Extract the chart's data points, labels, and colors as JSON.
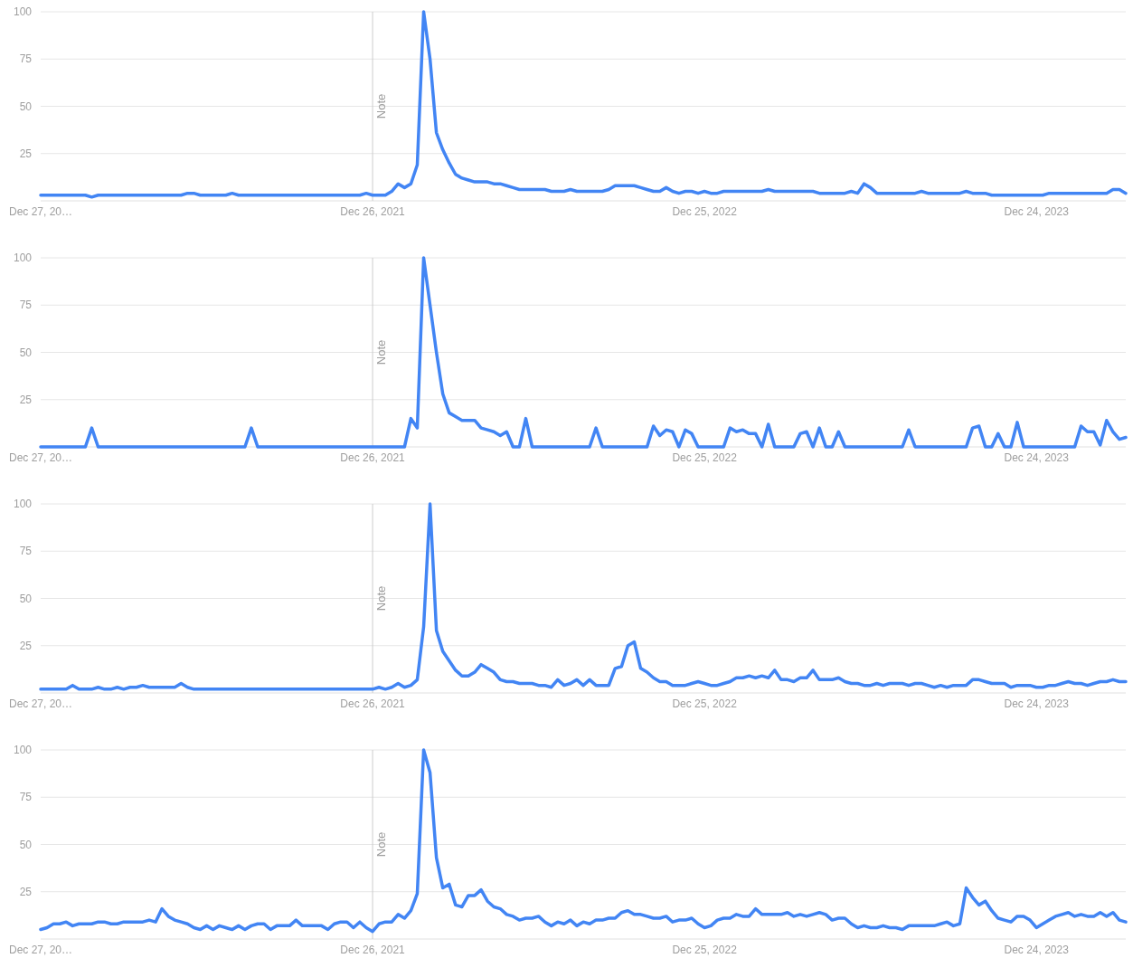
{
  "chart_data": [
    {
      "type": "line",
      "xlim": [
        "2020-12-27",
        "2024-03-31"
      ],
      "ylim": [
        0,
        100
      ],
      "xticks": [
        {
          "value": "2020-12-27",
          "label": "Dec 27, 20…"
        },
        {
          "value": "2021-12-26",
          "label": "Dec 26, 2021"
        },
        {
          "value": "2022-12-25",
          "label": "Dec 25, 2022"
        },
        {
          "value": "2023-12-24",
          "label": "Dec 24, 2023"
        }
      ],
      "yticks": [
        25,
        50,
        75,
        100
      ],
      "grid": "y",
      "marker": "none",
      "ref_lines": [
        {
          "axis": "x",
          "value": "2021-12-26",
          "label": "Note",
          "color": "#cccccc"
        }
      ],
      "x": [
        "2020-12-27",
        "2021-01-03",
        "2021-01-10",
        "2021-01-17",
        "2021-01-24",
        "2021-01-31",
        "2021-02-07",
        "2021-02-14",
        "2021-02-21",
        "2021-02-28",
        "2021-03-07",
        "2021-03-14",
        "2021-03-21",
        "2021-03-28",
        "2021-04-04",
        "2021-04-11",
        "2021-04-18",
        "2021-04-25",
        "2021-05-02",
        "2021-05-09",
        "2021-05-16",
        "2021-05-23",
        "2021-05-30",
        "2021-06-06",
        "2021-06-13",
        "2021-06-20",
        "2021-06-27",
        "2021-07-04",
        "2021-07-11",
        "2021-07-18",
        "2021-07-25",
        "2021-08-01",
        "2021-08-08",
        "2021-08-15",
        "2021-08-22",
        "2021-08-29",
        "2021-09-05",
        "2021-09-12",
        "2021-09-19",
        "2021-09-26",
        "2021-10-03",
        "2021-10-10",
        "2021-10-17",
        "2021-10-24",
        "2021-10-31",
        "2021-11-07",
        "2021-11-14",
        "2021-11-21",
        "2021-11-28",
        "2021-12-05",
        "2021-12-12",
        "2021-12-19",
        "2021-12-26",
        "2022-01-02",
        "2022-01-09",
        "2022-01-16",
        "2022-01-23",
        "2022-01-30",
        "2022-02-06",
        "2022-02-13",
        "2022-02-20",
        "2022-02-27",
        "2022-03-06",
        "2022-03-13",
        "2022-03-20",
        "2022-03-27",
        "2022-04-03",
        "2022-04-10",
        "2022-04-17",
        "2022-04-24",
        "2022-05-01",
        "2022-05-08",
        "2022-05-15",
        "2022-05-22",
        "2022-05-29",
        "2022-06-05",
        "2022-06-12",
        "2022-06-19",
        "2022-06-26",
        "2022-07-03",
        "2022-07-10",
        "2022-07-17",
        "2022-07-24",
        "2022-07-31",
        "2022-08-07",
        "2022-08-14",
        "2022-08-21",
        "2022-08-28",
        "2022-09-04",
        "2022-09-11",
        "2022-09-18",
        "2022-09-25",
        "2022-10-02",
        "2022-10-09",
        "2022-10-16",
        "2022-10-23",
        "2022-10-30",
        "2022-11-06",
        "2022-11-13",
        "2022-11-20",
        "2022-11-27",
        "2022-12-04",
        "2022-12-11",
        "2022-12-18",
        "2022-12-25",
        "2023-01-01",
        "2023-01-08",
        "2023-01-15",
        "2023-01-22",
        "2023-01-29",
        "2023-02-05",
        "2023-02-12",
        "2023-02-19",
        "2023-02-26",
        "2023-03-05",
        "2023-03-12",
        "2023-03-19",
        "2023-03-26",
        "2023-04-02",
        "2023-04-09",
        "2023-04-16",
        "2023-04-23",
        "2023-04-30",
        "2023-05-07",
        "2023-05-14",
        "2023-05-21",
        "2023-05-28",
        "2023-06-04",
        "2023-06-11",
        "2023-06-18",
        "2023-06-25",
        "2023-07-02",
        "2023-07-09",
        "2023-07-16",
        "2023-07-23",
        "2023-07-30",
        "2023-08-06",
        "2023-08-13",
        "2023-08-20",
        "2023-08-27",
        "2023-09-03",
        "2023-09-10",
        "2023-09-17",
        "2023-09-24",
        "2023-10-01",
        "2023-10-08",
        "2023-10-15",
        "2023-10-22",
        "2023-10-29",
        "2023-11-05",
        "2023-11-12",
        "2023-11-19",
        "2023-11-26",
        "2023-12-03",
        "2023-12-10",
        "2023-12-17",
        "2023-12-24",
        "2023-12-31",
        "2024-01-07",
        "2024-01-14",
        "2024-01-21",
        "2024-01-28",
        "2024-02-04",
        "2024-02-11",
        "2024-02-18",
        "2024-02-25",
        "2024-03-03",
        "2024-03-10",
        "2024-03-17",
        "2024-03-24",
        "2024-03-31"
      ],
      "series": [
        {
          "color": "#4285f4",
          "values": [
            3,
            3,
            3,
            3,
            3,
            3,
            3,
            3,
            2,
            3,
            3,
            3,
            3,
            3,
            3,
            3,
            3,
            3,
            3,
            3,
            3,
            3,
            3,
            4,
            4,
            3,
            3,
            3,
            3,
            3,
            4,
            3,
            3,
            3,
            3,
            3,
            3,
            3,
            3,
            3,
            3,
            3,
            3,
            3,
            3,
            3,
            3,
            3,
            3,
            3,
            3,
            4,
            3,
            3,
            3,
            5,
            9,
            7,
            9,
            19,
            100,
            75,
            36,
            27,
            20,
            14,
            12,
            11,
            10,
            10,
            10,
            9,
            9,
            8,
            7,
            6,
            6,
            6,
            6,
            6,
            5,
            5,
            5,
            6,
            5,
            5,
            5,
            5,
            5,
            6,
            8,
            8,
            8,
            8,
            7,
            6,
            5,
            5,
            7,
            5,
            4,
            5,
            5,
            4,
            5,
            4,
            4,
            5,
            5,
            5,
            5,
            5,
            5,
            5,
            6,
            5,
            5,
            5,
            5,
            5,
            5,
            5,
            4,
            4,
            4,
            4,
            4,
            5,
            4,
            9,
            7,
            4,
            4,
            4,
            4,
            4,
            4,
            4,
            5,
            4,
            4,
            4,
            4,
            4,
            4,
            5,
            4,
            4,
            4,
            3,
            3,
            3,
            3,
            3,
            3,
            3,
            3,
            3,
            4,
            4,
            4,
            4,
            4,
            4,
            4,
            4,
            4,
            4,
            6,
            6,
            4
          ]
        }
      ]
    },
    {
      "type": "line",
      "xlim": [
        "2020-12-27",
        "2024-03-31"
      ],
      "ylim": [
        0,
        100
      ],
      "xticks": [
        {
          "value": "2020-12-27",
          "label": "Dec 27, 20…"
        },
        {
          "value": "2021-12-26",
          "label": "Dec 26, 2021"
        },
        {
          "value": "2022-12-25",
          "label": "Dec 25, 2022"
        },
        {
          "value": "2023-12-24",
          "label": "Dec 24, 2023"
        }
      ],
      "yticks": [
        25,
        50,
        75,
        100
      ],
      "grid": "y",
      "marker": "none",
      "ref_lines": [
        {
          "axis": "x",
          "value": "2021-12-26",
          "label": "Note",
          "color": "#cccccc"
        }
      ],
      "x": [
        "2020-12-27",
        "2021-01-03",
        "2021-01-10",
        "2021-01-17",
        "2021-01-24",
        "2021-01-31",
        "2021-02-07",
        "2021-02-14",
        "2021-02-21",
        "2021-02-28",
        "2021-03-07",
        "2021-03-14",
        "2021-03-21",
        "2021-03-28",
        "2021-04-04",
        "2021-04-11",
        "2021-04-18",
        "2021-04-25",
        "2021-05-02",
        "2021-05-09",
        "2021-05-16",
        "2021-05-23",
        "2021-05-30",
        "2021-06-06",
        "2021-06-13",
        "2021-06-20",
        "2021-06-27",
        "2021-07-04",
        "2021-07-11",
        "2021-07-18",
        "2021-07-25",
        "2021-08-01",
        "2021-08-08",
        "2021-08-15",
        "2021-08-22",
        "2021-08-29",
        "2021-09-05",
        "2021-09-12",
        "2021-09-19",
        "2021-09-26",
        "2021-10-03",
        "2021-10-10",
        "2021-10-17",
        "2021-10-24",
        "2021-10-31",
        "2021-11-07",
        "2021-11-14",
        "2021-11-21",
        "2021-11-28",
        "2021-12-05",
        "2021-12-12",
        "2021-12-19",
        "2021-12-26",
        "2022-01-02",
        "2022-01-09",
        "2022-01-16",
        "2022-01-23",
        "2022-01-30",
        "2022-02-06",
        "2022-02-13",
        "2022-02-20",
        "2022-02-27",
        "2022-03-06",
        "2022-03-13",
        "2022-03-20",
        "2022-03-27",
        "2022-04-03",
        "2022-04-10",
        "2022-04-17",
        "2022-04-24",
        "2022-05-01",
        "2022-05-08",
        "2022-05-15",
        "2022-05-22",
        "2022-05-29",
        "2022-06-05",
        "2022-06-12",
        "2022-06-19",
        "2022-06-26",
        "2022-07-03",
        "2022-07-10",
        "2022-07-17",
        "2022-07-24",
        "2022-07-31",
        "2022-08-07",
        "2022-08-14",
        "2022-08-21",
        "2022-08-28",
        "2022-09-04",
        "2022-09-11",
        "2022-09-18",
        "2022-09-25",
        "2022-10-02",
        "2022-10-09",
        "2022-10-16",
        "2022-10-23",
        "2022-10-30",
        "2022-11-06",
        "2022-11-13",
        "2022-11-20",
        "2022-11-27",
        "2022-12-04",
        "2022-12-11",
        "2022-12-18",
        "2022-12-25",
        "2023-01-01",
        "2023-01-08",
        "2023-01-15",
        "2023-01-22",
        "2023-01-29",
        "2023-02-05",
        "2023-02-12",
        "2023-02-19",
        "2023-02-26",
        "2023-03-05",
        "2023-03-12",
        "2023-03-19",
        "2023-03-26",
        "2023-04-02",
        "2023-04-09",
        "2023-04-16",
        "2023-04-23",
        "2023-04-30",
        "2023-05-07",
        "2023-05-14",
        "2023-05-21",
        "2023-05-28",
        "2023-06-04",
        "2023-06-11",
        "2023-06-18",
        "2023-06-25",
        "2023-07-02",
        "2023-07-09",
        "2023-07-16",
        "2023-07-23",
        "2023-07-30",
        "2023-08-06",
        "2023-08-13",
        "2023-08-20",
        "2023-08-27",
        "2023-09-03",
        "2023-09-10",
        "2023-09-17",
        "2023-09-24",
        "2023-10-01",
        "2023-10-08",
        "2023-10-15",
        "2023-10-22",
        "2023-10-29",
        "2023-11-05",
        "2023-11-12",
        "2023-11-19",
        "2023-11-26",
        "2023-12-03",
        "2023-12-10",
        "2023-12-17",
        "2023-12-24",
        "2023-12-31",
        "2024-01-07",
        "2024-01-14",
        "2024-01-21",
        "2024-01-28",
        "2024-02-04",
        "2024-02-11",
        "2024-02-18",
        "2024-02-25",
        "2024-03-03",
        "2024-03-10",
        "2024-03-17",
        "2024-03-24",
        "2024-03-31"
      ],
      "series": [
        {
          "color": "#4285f4",
          "values": [
            0,
            0,
            0,
            0,
            0,
            0,
            0,
            0,
            10,
            0,
            0,
            0,
            0,
            0,
            0,
            0,
            0,
            0,
            0,
            0,
            0,
            0,
            0,
            0,
            0,
            0,
            0,
            0,
            0,
            0,
            0,
            0,
            0,
            10,
            0,
            0,
            0,
            0,
            0,
            0,
            0,
            0,
            0,
            0,
            0,
            0,
            0,
            0,
            0,
            0,
            0,
            0,
            0,
            0,
            0,
            0,
            0,
            0,
            15,
            10,
            100,
            75,
            50,
            28,
            18,
            16,
            14,
            14,
            14,
            10,
            9,
            8,
            6,
            8,
            0,
            0,
            15,
            0,
            0,
            0,
            0,
            0,
            0,
            0,
            0,
            0,
            0,
            10,
            0,
            0,
            0,
            0,
            0,
            0,
            0,
            0,
            11,
            6,
            9,
            8,
            0,
            9,
            7,
            0,
            0,
            0,
            0,
            0,
            10,
            8,
            9,
            7,
            7,
            0,
            12,
            0,
            0,
            0,
            0,
            7,
            8,
            0,
            10,
            0,
            0,
            8,
            0,
            0,
            0,
            0,
            0,
            0,
            0,
            0,
            0,
            0,
            9,
            0,
            0,
            0,
            0,
            0,
            0,
            0,
            0,
            0,
            10,
            11,
            0,
            0,
            7,
            0,
            0,
            13,
            0,
            0,
            0,
            0,
            0,
            0,
            0,
            0,
            0,
            11,
            8,
            8,
            1,
            14,
            8,
            4,
            5
          ]
        }
      ]
    },
    {
      "type": "line",
      "xlim": [
        "2020-12-27",
        "2024-03-31"
      ],
      "ylim": [
        0,
        100
      ],
      "xticks": [
        {
          "value": "2020-12-27",
          "label": "Dec 27, 20…"
        },
        {
          "value": "2021-12-26",
          "label": "Dec 26, 2021"
        },
        {
          "value": "2022-12-25",
          "label": "Dec 25, 2022"
        },
        {
          "value": "2023-12-24",
          "label": "Dec 24, 2023"
        }
      ],
      "yticks": [
        25,
        50,
        75,
        100
      ],
      "grid": "y",
      "marker": "none",
      "ref_lines": [
        {
          "axis": "x",
          "value": "2021-12-26",
          "label": "Note",
          "color": "#cccccc"
        }
      ],
      "x": [
        "2020-12-27",
        "2021-01-03",
        "2021-01-10",
        "2021-01-17",
        "2021-01-24",
        "2021-01-31",
        "2021-02-07",
        "2021-02-14",
        "2021-02-21",
        "2021-02-28",
        "2021-03-07",
        "2021-03-14",
        "2021-03-21",
        "2021-03-28",
        "2021-04-04",
        "2021-04-11",
        "2021-04-18",
        "2021-04-25",
        "2021-05-02",
        "2021-05-09",
        "2021-05-16",
        "2021-05-23",
        "2021-05-30",
        "2021-06-06",
        "2021-06-13",
        "2021-06-20",
        "2021-06-27",
        "2021-07-04",
        "2021-07-11",
        "2021-07-18",
        "2021-07-25",
        "2021-08-01",
        "2021-08-08",
        "2021-08-15",
        "2021-08-22",
        "2021-08-29",
        "2021-09-05",
        "2021-09-12",
        "2021-09-19",
        "2021-09-26",
        "2021-10-03",
        "2021-10-10",
        "2021-10-17",
        "2021-10-24",
        "2021-10-31",
        "2021-11-07",
        "2021-11-14",
        "2021-11-21",
        "2021-11-28",
        "2021-12-05",
        "2021-12-12",
        "2021-12-19",
        "2021-12-26",
        "2022-01-02",
        "2022-01-09",
        "2022-01-16",
        "2022-01-23",
        "2022-01-30",
        "2022-02-06",
        "2022-02-13",
        "2022-02-20",
        "2022-02-27",
        "2022-03-06",
        "2022-03-13",
        "2022-03-20",
        "2022-03-27",
        "2022-04-03",
        "2022-04-10",
        "2022-04-17",
        "2022-04-24",
        "2022-05-01",
        "2022-05-08",
        "2022-05-15",
        "2022-05-22",
        "2022-05-29",
        "2022-06-05",
        "2022-06-12",
        "2022-06-19",
        "2022-06-26",
        "2022-07-03",
        "2022-07-10",
        "2022-07-17",
        "2022-07-24",
        "2022-07-31",
        "2022-08-07",
        "2022-08-14",
        "2022-08-21",
        "2022-08-28",
        "2022-09-04",
        "2022-09-11",
        "2022-09-18",
        "2022-09-25",
        "2022-10-02",
        "2022-10-09",
        "2022-10-16",
        "2022-10-23",
        "2022-10-30",
        "2022-11-06",
        "2022-11-13",
        "2022-11-20",
        "2022-11-27",
        "2022-12-04",
        "2022-12-11",
        "2022-12-18",
        "2022-12-25",
        "2023-01-01",
        "2023-01-08",
        "2023-01-15",
        "2023-01-22",
        "2023-01-29",
        "2023-02-05",
        "2023-02-12",
        "2023-02-19",
        "2023-02-26",
        "2023-03-05",
        "2023-03-12",
        "2023-03-19",
        "2023-03-26",
        "2023-04-02",
        "2023-04-09",
        "2023-04-16",
        "2023-04-23",
        "2023-04-30",
        "2023-05-07",
        "2023-05-14",
        "2023-05-21",
        "2023-05-28",
        "2023-06-04",
        "2023-06-11",
        "2023-06-18",
        "2023-06-25",
        "2023-07-02",
        "2023-07-09",
        "2023-07-16",
        "2023-07-23",
        "2023-07-30",
        "2023-08-06",
        "2023-08-13",
        "2023-08-20",
        "2023-08-27",
        "2023-09-03",
        "2023-09-10",
        "2023-09-17",
        "2023-09-24",
        "2023-10-01",
        "2023-10-08",
        "2023-10-15",
        "2023-10-22",
        "2023-10-29",
        "2023-11-05",
        "2023-11-12",
        "2023-11-19",
        "2023-11-26",
        "2023-12-03",
        "2023-12-10",
        "2023-12-17",
        "2023-12-24",
        "2023-12-31",
        "2024-01-07",
        "2024-01-14",
        "2024-01-21",
        "2024-01-28",
        "2024-02-04",
        "2024-02-11",
        "2024-02-18",
        "2024-02-25",
        "2024-03-03",
        "2024-03-10",
        "2024-03-17",
        "2024-03-24",
        "2024-03-31"
      ],
      "series": [
        {
          "color": "#4285f4",
          "values": [
            2,
            2,
            2,
            2,
            2,
            4,
            2,
            2,
            2,
            3,
            2,
            2,
            3,
            2,
            3,
            3,
            4,
            3,
            3,
            3,
            3,
            3,
            5,
            3,
            2,
            2,
            2,
            2,
            2,
            2,
            2,
            2,
            2,
            2,
            2,
            2,
            2,
            2,
            2,
            2,
            2,
            2,
            2,
            2,
            2,
            2,
            2,
            2,
            2,
            2,
            2,
            2,
            2,
            3,
            2,
            3,
            5,
            3,
            4,
            7,
            35,
            100,
            33,
            22,
            17,
            12,
            9,
            9,
            11,
            15,
            13,
            11,
            7,
            6,
            6,
            5,
            5,
            5,
            4,
            4,
            3,
            7,
            4,
            5,
            7,
            4,
            7,
            4,
            4,
            4,
            13,
            14,
            25,
            27,
            13,
            11,
            8,
            6,
            6,
            4,
            4,
            4,
            5,
            6,
            5,
            4,
            4,
            5,
            6,
            8,
            8,
            9,
            8,
            9,
            8,
            12,
            7,
            7,
            6,
            8,
            8,
            12,
            7,
            7,
            7,
            8,
            6,
            5,
            5,
            4,
            4,
            5,
            4,
            5,
            5,
            5,
            4,
            5,
            5,
            4,
            3,
            4,
            3,
            4,
            4,
            4,
            7,
            7,
            6,
            5,
            5,
            5,
            3,
            4,
            4,
            4,
            3,
            3,
            4,
            4,
            5,
            6,
            5,
            5,
            4,
            5,
            6,
            6,
            7,
            6,
            6
          ]
        }
      ]
    },
    {
      "type": "line",
      "xlim": [
        "2020-12-27",
        "2024-03-31"
      ],
      "ylim": [
        0,
        100
      ],
      "xticks": [
        {
          "value": "2020-12-27",
          "label": "Dec 27, 20…"
        },
        {
          "value": "2021-12-26",
          "label": "Dec 26, 2021"
        },
        {
          "value": "2022-12-25",
          "label": "Dec 25, 2022"
        },
        {
          "value": "2023-12-24",
          "label": "Dec 24, 2023"
        }
      ],
      "yticks": [
        25,
        50,
        75,
        100
      ],
      "grid": "y",
      "marker": "none",
      "ref_lines": [
        {
          "axis": "x",
          "value": "2021-12-26",
          "label": "Note",
          "color": "#cccccc"
        }
      ],
      "x": [
        "2020-12-27",
        "2021-01-03",
        "2021-01-10",
        "2021-01-17",
        "2021-01-24",
        "2021-01-31",
        "2021-02-07",
        "2021-02-14",
        "2021-02-21",
        "2021-02-28",
        "2021-03-07",
        "2021-03-14",
        "2021-03-21",
        "2021-03-28",
        "2021-04-04",
        "2021-04-11",
        "2021-04-18",
        "2021-04-25",
        "2021-05-02",
        "2021-05-09",
        "2021-05-16",
        "2021-05-23",
        "2021-05-30",
        "2021-06-06",
        "2021-06-13",
        "2021-06-20",
        "2021-06-27",
        "2021-07-04",
        "2021-07-11",
        "2021-07-18",
        "2021-07-25",
        "2021-08-01",
        "2021-08-08",
        "2021-08-15",
        "2021-08-22",
        "2021-08-29",
        "2021-09-05",
        "2021-09-12",
        "2021-09-19",
        "2021-09-26",
        "2021-10-03",
        "2021-10-10",
        "2021-10-17",
        "2021-10-24",
        "2021-10-31",
        "2021-11-07",
        "2021-11-14",
        "2021-11-21",
        "2021-11-28",
        "2021-12-05",
        "2021-12-12",
        "2021-12-19",
        "2021-12-26",
        "2022-01-02",
        "2022-01-09",
        "2022-01-16",
        "2022-01-23",
        "2022-01-30",
        "2022-02-06",
        "2022-02-13",
        "2022-02-20",
        "2022-02-27",
        "2022-03-06",
        "2022-03-13",
        "2022-03-20",
        "2022-03-27",
        "2022-04-03",
        "2022-04-10",
        "2022-04-17",
        "2022-04-24",
        "2022-05-01",
        "2022-05-08",
        "2022-05-15",
        "2022-05-22",
        "2022-05-29",
        "2022-06-05",
        "2022-06-12",
        "2022-06-19",
        "2022-06-26",
        "2022-07-03",
        "2022-07-10",
        "2022-07-17",
        "2022-07-24",
        "2022-07-31",
        "2022-08-07",
        "2022-08-14",
        "2022-08-21",
        "2022-08-28",
        "2022-09-04",
        "2022-09-11",
        "2022-09-18",
        "2022-09-25",
        "2022-10-02",
        "2022-10-09",
        "2022-10-16",
        "2022-10-23",
        "2022-10-30",
        "2022-11-06",
        "2022-11-13",
        "2022-11-20",
        "2022-11-27",
        "2022-12-04",
        "2022-12-11",
        "2022-12-18",
        "2022-12-25",
        "2023-01-01",
        "2023-01-08",
        "2023-01-15",
        "2023-01-22",
        "2023-01-29",
        "2023-02-05",
        "2023-02-12",
        "2023-02-19",
        "2023-02-26",
        "2023-03-05",
        "2023-03-12",
        "2023-03-19",
        "2023-03-26",
        "2023-04-02",
        "2023-04-09",
        "2023-04-16",
        "2023-04-23",
        "2023-04-30",
        "2023-05-07",
        "2023-05-14",
        "2023-05-21",
        "2023-05-28",
        "2023-06-04",
        "2023-06-11",
        "2023-06-18",
        "2023-06-25",
        "2023-07-02",
        "2023-07-09",
        "2023-07-16",
        "2023-07-23",
        "2023-07-30",
        "2023-08-06",
        "2023-08-13",
        "2023-08-20",
        "2023-08-27",
        "2023-09-03",
        "2023-09-10",
        "2023-09-17",
        "2023-09-24",
        "2023-10-01",
        "2023-10-08",
        "2023-10-15",
        "2023-10-22",
        "2023-10-29",
        "2023-11-05",
        "2023-11-12",
        "2023-11-19",
        "2023-11-26",
        "2023-12-03",
        "2023-12-10",
        "2023-12-17",
        "2023-12-24",
        "2023-12-31",
        "2024-01-07",
        "2024-01-14",
        "2024-01-21",
        "2024-01-28",
        "2024-02-04",
        "2024-02-11",
        "2024-02-18",
        "2024-02-25",
        "2024-03-03",
        "2024-03-10",
        "2024-03-17",
        "2024-03-24",
        "2024-03-31"
      ],
      "series": [
        {
          "color": "#4285f4",
          "values": [
            5,
            6,
            8,
            8,
            9,
            7,
            8,
            8,
            8,
            9,
            9,
            8,
            8,
            9,
            9,
            9,
            9,
            10,
            9,
            16,
            12,
            10,
            9,
            8,
            6,
            5,
            7,
            5,
            7,
            6,
            5,
            7,
            5,
            7,
            8,
            8,
            5,
            7,
            7,
            7,
            10,
            7,
            7,
            7,
            7,
            5,
            8,
            9,
            9,
            6,
            9,
            6,
            4,
            8,
            9,
            9,
            13,
            11,
            15,
            24,
            100,
            88,
            43,
            27,
            29,
            18,
            17,
            23,
            23,
            26,
            20,
            17,
            16,
            13,
            12,
            10,
            11,
            11,
            12,
            9,
            7,
            9,
            8,
            10,
            7,
            9,
            8,
            10,
            10,
            11,
            11,
            14,
            15,
            13,
            13,
            12,
            11,
            11,
            12,
            9,
            10,
            10,
            11,
            8,
            6,
            7,
            10,
            11,
            11,
            13,
            12,
            12,
            16,
            13,
            13,
            13,
            13,
            14,
            12,
            13,
            12,
            13,
            14,
            13,
            10,
            11,
            11,
            8,
            6,
            7,
            6,
            6,
            7,
            6,
            6,
            5,
            7,
            7,
            7,
            7,
            7,
            8,
            9,
            7,
            8,
            27,
            22,
            18,
            20,
            15,
            11,
            10,
            9,
            12,
            12,
            10,
            6,
            8,
            10,
            12,
            13,
            14,
            12,
            13,
            12,
            12,
            14,
            12,
            14,
            10,
            9
          ]
        }
      ]
    }
  ]
}
